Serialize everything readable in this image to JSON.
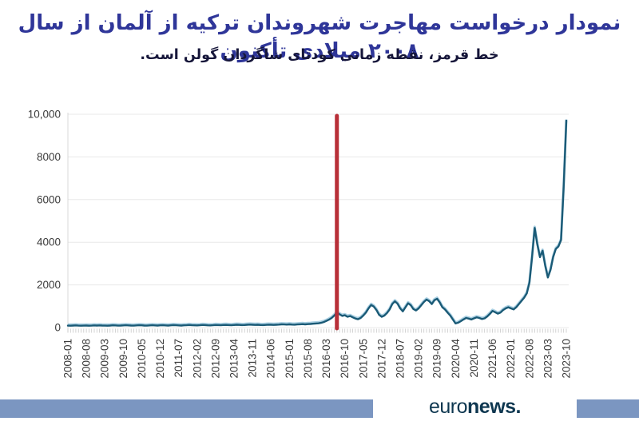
{
  "title": {
    "line1": "نمودار درخواست مهاجرت شهروندان ترکیه از آلمان از سال ۲۰۰۸ میلادی تأکنون",
    "line2": "خط قرمز، نقطه زمانی کودتای شاگردان گولن است."
  },
  "footer": {
    "logo_euro": "euro",
    "logo_news": "news."
  },
  "colors": {
    "title": "#2f3699",
    "subtitle": "#16163a",
    "axis_text": "#3a3a3a",
    "grid": "#e8e8e8",
    "spine": "#d9d9d9",
    "minor_tick": "#c9c9c9",
    "line": "#1a5a76",
    "line_halo": "#a9cfe2",
    "red_marker": "#b82f38",
    "footer_bar": "#7b96c1",
    "logo": "#0e3750",
    "background": "#ffffff"
  },
  "chart_data": {
    "type": "line",
    "x_start": "2008-01",
    "x_end": "2023-10",
    "x_step_months": 1,
    "x_tick_labels": [
      "2008-01",
      "2008-08",
      "2009-03",
      "2009-10",
      "2010-05",
      "2010-12",
      "2011-07",
      "2012-02",
      "2012-09",
      "2013-04",
      "2013-11",
      "2014-06",
      "2015-01",
      "2015-08",
      "2016-03",
      "2016-10",
      "2017-05",
      "2017-12",
      "2018-07",
      "2019-02",
      "2019-09",
      "2020-04",
      "2020-11",
      "2021-06",
      "2022-01",
      "2022-08",
      "2023-03",
      "2023-10"
    ],
    "x_tick_every_n_months": 7,
    "y_ticks": [
      0,
      2000,
      4000,
      6000,
      8000,
      10000
    ],
    "y_tick_labels": [
      "0",
      "2000",
      "4000",
      "6000",
      "8000",
      "10,000"
    ],
    "ylim": [
      0,
      10000
    ],
    "grid": "horizontal",
    "red_marker_month": "2016-07",
    "series": [
      {
        "name": "monthly-applications",
        "values": [
          90,
          85,
          95,
          100,
          90,
          85,
          90,
          95,
          85,
          90,
          100,
          95,
          100,
          95,
          90,
          85,
          95,
          105,
          100,
          90,
          95,
          100,
          110,
          100,
          95,
          90,
          100,
          110,
          105,
          95,
          90,
          100,
          110,
          100,
          95,
          105,
          110,
          100,
          95,
          105,
          115,
          110,
          100,
          95,
          105,
          110,
          120,
          110,
          105,
          100,
          110,
          120,
          115,
          105,
          100,
          110,
          120,
          115,
          110,
          120,
          125,
          115,
          110,
          120,
          130,
          125,
          115,
          120,
          130,
          140,
          130,
          125,
          130,
          120,
          115,
          125,
          135,
          130,
          125,
          130,
          140,
          150,
          145,
          140,
          150,
          140,
          135,
          145,
          155,
          160,
          150,
          160,
          170,
          180,
          190,
          200,
          220,
          260,
          310,
          370,
          450,
          560,
          700,
          620,
          545,
          575,
          505,
          540,
          480,
          425,
          390,
          450,
          560,
          705,
          900,
          1060,
          980,
          820,
          600,
          505,
          560,
          680,
          850,
          1100,
          1230,
          1120,
          900,
          760,
          950,
          1140,
          1050,
          870,
          800,
          900,
          1050,
          1200,
          1310,
          1240,
          1100,
          1280,
          1350,
          1180,
          950,
          850,
          700,
          560,
          380,
          190,
          230,
          300,
          380,
          450,
          420,
          380,
          430,
          480,
          450,
          400,
          430,
          520,
          640,
          780,
          720,
          650,
          700,
          820,
          900,
          950,
          900,
          850,
          950,
          1100,
          1250,
          1400,
          1600,
          2100,
          3300,
          4670,
          3900,
          3300,
          3600,
          2900,
          2350,
          2700,
          3300,
          3680,
          3800,
          4100,
          6600,
          9700
        ]
      }
    ]
  }
}
